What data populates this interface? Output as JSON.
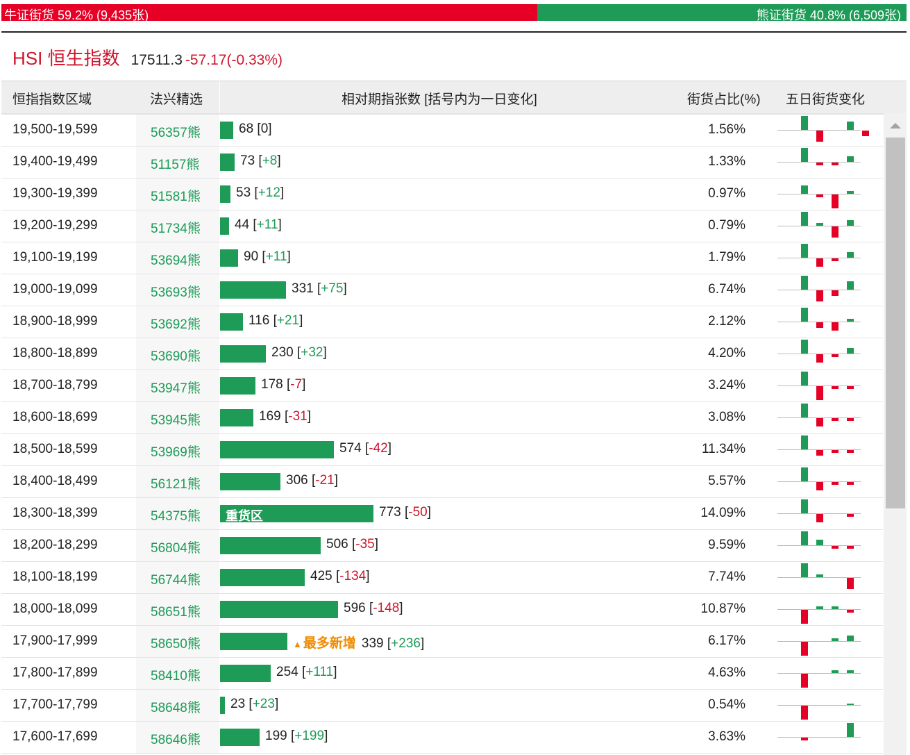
{
  "ratio": {
    "bull_label": "牛证街货 59.2% (9,435张)",
    "bear_label": "熊证街货 40.8% (6,509张)",
    "bull_share": 59.2,
    "bull_color": "#e60026",
    "bear_color": "#1d9b57"
  },
  "index": {
    "name": "HSI 恒生指数",
    "value": "17511.3",
    "change": "-57.17(-0.33%)"
  },
  "table": {
    "headers": {
      "range": "恒指指数区域",
      "pick": "法兴精选",
      "relative": "相对期指张数 [括号内为一日变化]",
      "share": "街货占比(%)",
      "five_day": "五日街货变化"
    },
    "max_count": 773,
    "rows": [
      {
        "range": "19,500-19,599",
        "code": "56357熊",
        "count": "68",
        "change": "0",
        "share": "1.56%",
        "note": "",
        "bar_label": "",
        "spark": [
          5,
          -4,
          0,
          3,
          -2
        ]
      },
      {
        "range": "19,400-19,499",
        "code": "51157熊",
        "count": "73",
        "change": "+8",
        "share": "1.33%",
        "note": "",
        "bar_label": "",
        "spark": [
          5,
          -1,
          -1,
          2,
          0
        ]
      },
      {
        "range": "19,300-19,399",
        "code": "51581熊",
        "count": "53",
        "change": "+12",
        "share": "0.97%",
        "note": "",
        "bar_label": "",
        "spark": [
          3,
          -1,
          -5,
          1,
          0
        ]
      },
      {
        "range": "19,200-19,299",
        "code": "51734熊",
        "count": "44",
        "change": "+11",
        "share": "0.79%",
        "note": "",
        "bar_label": "",
        "spark": [
          5,
          1,
          -4,
          2,
          0
        ]
      },
      {
        "range": "19,100-19,199",
        "code": "53694熊",
        "count": "90",
        "change": "+11",
        "share": "1.79%",
        "note": "",
        "bar_label": "",
        "spark": [
          5,
          -3,
          -1,
          2,
          0
        ]
      },
      {
        "range": "19,000-19,099",
        "code": "53693熊",
        "count": "331",
        "change": "+75",
        "share": "6.74%",
        "note": "",
        "bar_label": "",
        "spark": [
          5,
          -4,
          -2,
          3,
          0
        ]
      },
      {
        "range": "18,900-18,999",
        "code": "53692熊",
        "count": "116",
        "change": "+21",
        "share": "2.12%",
        "note": "",
        "bar_label": "",
        "spark": [
          5,
          -2,
          -3,
          1,
          0
        ]
      },
      {
        "range": "18,800-18,899",
        "code": "53690熊",
        "count": "230",
        "change": "+32",
        "share": "4.20%",
        "note": "",
        "bar_label": "",
        "spark": [
          5,
          -3,
          -1,
          2,
          0
        ]
      },
      {
        "range": "18,700-18,799",
        "code": "53947熊",
        "count": "178",
        "change": "-7",
        "share": "3.24%",
        "note": "",
        "bar_label": "",
        "spark": [
          5,
          -5,
          -1,
          -1,
          0
        ]
      },
      {
        "range": "18,600-18,699",
        "code": "53945熊",
        "count": "169",
        "change": "-31",
        "share": "3.08%",
        "note": "",
        "bar_label": "",
        "spark": [
          5,
          -3,
          -1,
          -1,
          0
        ]
      },
      {
        "range": "18,500-18,599",
        "code": "53969熊",
        "count": "574",
        "change": "-42",
        "share": "11.34%",
        "note": "",
        "bar_label": "",
        "spark": [
          5,
          -2,
          -1,
          -1,
          0
        ]
      },
      {
        "range": "18,400-18,499",
        "code": "56121熊",
        "count": "306",
        "change": "-21",
        "share": "5.57%",
        "note": "",
        "bar_label": "",
        "spark": [
          5,
          -3,
          -1,
          -1,
          0
        ]
      },
      {
        "range": "18,300-18,399",
        "code": "54375熊",
        "count": "773",
        "change": "-50",
        "share": "14.09%",
        "note": "",
        "bar_label": "重货区",
        "spark": [
          5,
          -3,
          0,
          -1,
          0
        ]
      },
      {
        "range": "18,200-18,299",
        "code": "56804熊",
        "count": "506",
        "change": "-35",
        "share": "9.59%",
        "note": "",
        "bar_label": "",
        "spark": [
          5,
          2,
          -1,
          -1,
          0
        ]
      },
      {
        "range": "18,100-18,199",
        "code": "56744熊",
        "count": "425",
        "change": "-134",
        "share": "7.74%",
        "note": "",
        "bar_label": "",
        "spark": [
          5,
          1,
          0,
          -4,
          0
        ]
      },
      {
        "range": "18,000-18,099",
        "code": "58651熊",
        "count": "596",
        "change": "-148",
        "share": "10.87%",
        "note": "",
        "bar_label": "",
        "spark": [
          -5,
          1,
          1,
          -1,
          0
        ]
      },
      {
        "range": "17,900-17,999",
        "code": "58650熊",
        "count": "339",
        "change": "+236",
        "share": "6.17%",
        "note": "最多新增",
        "bar_label": "",
        "spark": [
          -5,
          0,
          1,
          2,
          0
        ]
      },
      {
        "range": "17,800-17,899",
        "code": "58410熊",
        "count": "254",
        "change": "+111",
        "share": "4.63%",
        "note": "",
        "bar_label": "",
        "spark": [
          -5,
          0,
          1,
          1,
          0
        ]
      },
      {
        "range": "17,700-17,799",
        "code": "58648熊",
        "count": "23",
        "change": "+23",
        "share": "0.54%",
        "note": "",
        "bar_label": "",
        "spark": [
          -5,
          0,
          0,
          0.2,
          0
        ]
      },
      {
        "range": "17,600-17,699",
        "code": "58646熊",
        "count": "199",
        "change": "+199",
        "share": "3.63%",
        "note": "",
        "bar_label": "",
        "spark": [
          -1,
          0,
          0,
          5,
          0
        ]
      }
    ]
  }
}
